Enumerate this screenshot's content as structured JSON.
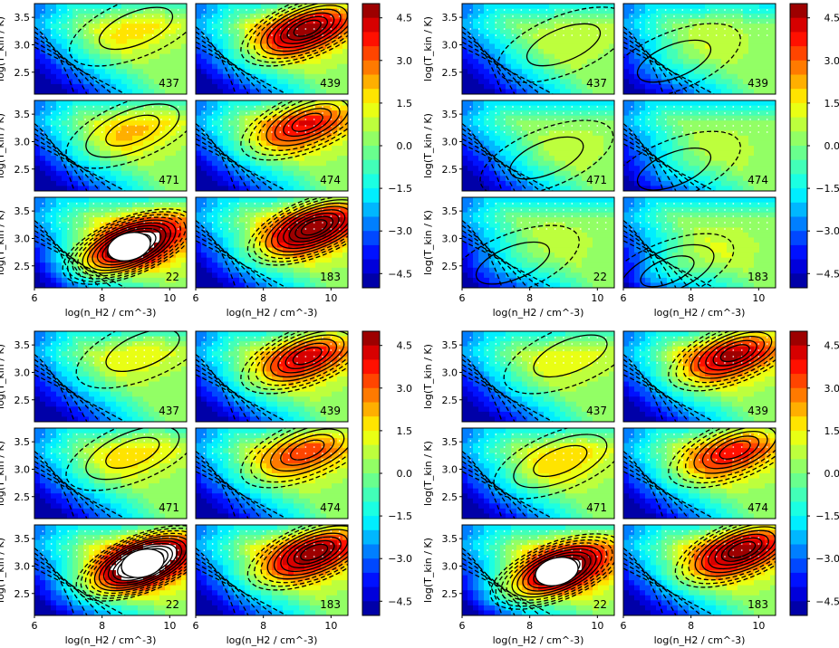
{
  "chart_data": [
    {
      "type": "heatmap",
      "block": "top-left",
      "xlabel": "log(n_H2 / cm^-3)",
      "ylabel": "log(T_kin / K)",
      "x_ticks": [
        "6",
        "8",
        "10"
      ],
      "y_ticks": [
        "2.5",
        "3.0",
        "3.5"
      ],
      "xlim": [
        6,
        10.5
      ],
      "ylim": [
        2.1,
        3.75
      ],
      "colorbar_ticks": [
        "4.5",
        "3.0",
        "1.5",
        "0.0",
        "−1.5",
        "−3.0",
        "−4.5"
      ],
      "colorbar_range": [
        -5,
        5
      ],
      "panels": [
        {
          "label": "437",
          "peak": {
            "x": 9.0,
            "y": 3.3,
            "value": 1.2
          },
          "has_hole": false
        },
        {
          "label": "439",
          "peak": {
            "x": 9.3,
            "y": 3.3,
            "value": 4.6
          },
          "has_hole": false
        },
        {
          "label": "471",
          "peak": {
            "x": 8.9,
            "y": 3.2,
            "value": 1.6
          },
          "has_hole": false
        },
        {
          "label": "474",
          "peak": {
            "x": 9.3,
            "y": 3.35,
            "value": 3.6
          },
          "has_hole": false
        },
        {
          "label": "22",
          "peak": {
            "x": 8.8,
            "y": 2.85,
            "value": 6.0
          },
          "has_hole": true
        },
        {
          "label": "183",
          "peak": {
            "x": 9.5,
            "y": 3.2,
            "value": 4.9
          },
          "has_hole": false
        }
      ]
    },
    {
      "type": "heatmap",
      "block": "top-right",
      "xlabel": "log(n_H2 / cm^-3)",
      "ylabel": "log(T_kin / K)",
      "x_ticks": [
        "6",
        "8",
        "10"
      ],
      "y_ticks": [
        "2.5",
        "3.0",
        "3.5"
      ],
      "xlim": [
        6,
        10.5
      ],
      "ylim": [
        2.1,
        3.75
      ],
      "colorbar_ticks": [
        "4.5",
        "3.0",
        "1.5",
        "0.0",
        "−1.5",
        "−3.0",
        "−4.5"
      ],
      "colorbar_range": [
        -5,
        5
      ],
      "panels": [
        {
          "label": "437",
          "peak": {
            "x": 9.0,
            "y": 3.0,
            "value": 0.3
          },
          "has_hole": false
        },
        {
          "label": "439",
          "peak": {
            "x": 7.5,
            "y": 2.7,
            "value": 0.8
          },
          "has_hole": false
        },
        {
          "label": "471",
          "peak": {
            "x": 8.5,
            "y": 2.7,
            "value": 0.3
          },
          "has_hole": false
        },
        {
          "label": "474",
          "peak": {
            "x": 7.5,
            "y": 2.5,
            "value": 0.9
          },
          "has_hole": false
        },
        {
          "label": "22",
          "peak": {
            "x": 7.5,
            "y": 2.55,
            "value": 0.9
          },
          "has_hole": false
        },
        {
          "label": "183",
          "peak": {
            "x": 7.3,
            "y": 2.4,
            "value": 1.7
          },
          "has_hole": false
        }
      ]
    },
    {
      "type": "heatmap",
      "block": "bottom-left",
      "xlabel": "log(n_H2 / cm^-3)",
      "ylabel": "log(T_kin / K)",
      "x_ticks": [
        "6",
        "8",
        "10"
      ],
      "y_ticks": [
        "2.5",
        "3.0",
        "3.5"
      ],
      "xlim": [
        6,
        10.5
      ],
      "ylim": [
        2.1,
        3.75
      ],
      "colorbar_ticks": [
        "4.5",
        "3.0",
        "1.5",
        "0.0",
        "−1.5",
        "−3.0",
        "−4.5"
      ],
      "colorbar_range": [
        -5,
        5
      ],
      "panels": [
        {
          "label": "437",
          "peak": {
            "x": 9.2,
            "y": 3.4,
            "value": 1.0
          },
          "has_hole": false
        },
        {
          "label": "439",
          "peak": {
            "x": 9.3,
            "y": 3.3,
            "value": 3.8
          },
          "has_hole": false
        },
        {
          "label": "471",
          "peak": {
            "x": 8.9,
            "y": 3.3,
            "value": 1.4
          },
          "has_hole": false
        },
        {
          "label": "474",
          "peak": {
            "x": 9.3,
            "y": 3.35,
            "value": 3.0
          },
          "has_hole": false
        },
        {
          "label": "22",
          "peak": {
            "x": 9.2,
            "y": 3.05,
            "value": 6.5
          },
          "has_hole": true
        },
        {
          "label": "183",
          "peak": {
            "x": 9.5,
            "y": 3.25,
            "value": 4.5
          },
          "has_hole": false
        }
      ]
    },
    {
      "type": "heatmap",
      "block": "bottom-right",
      "xlabel": "log(n_H2 / cm^-3)",
      "ylabel": "log(T_kin / K)",
      "x_ticks": [
        "6",
        "8",
        "10"
      ],
      "y_ticks": [
        "2.5",
        "3.0",
        "3.5"
      ],
      "xlim": [
        6,
        10.5
      ],
      "ylim": [
        2.1,
        3.75
      ],
      "colorbar_ticks": [
        "4.5",
        "3.0",
        "1.5",
        "0.0",
        "−1.5",
        "−3.0",
        "−4.5"
      ],
      "colorbar_range": [
        -5,
        5
      ],
      "panels": [
        {
          "label": "437",
          "peak": {
            "x": 9.2,
            "y": 3.3,
            "value": 0.9
          },
          "has_hole": false
        },
        {
          "label": "439",
          "peak": {
            "x": 9.3,
            "y": 3.35,
            "value": 4.2
          },
          "has_hole": false
        },
        {
          "label": "471",
          "peak": {
            "x": 8.9,
            "y": 3.15,
            "value": 1.4
          },
          "has_hole": false
        },
        {
          "label": "474",
          "peak": {
            "x": 9.3,
            "y": 3.35,
            "value": 3.5
          },
          "has_hole": false
        },
        {
          "label": "22",
          "peak": {
            "x": 8.8,
            "y": 2.9,
            "value": 5.6
          },
          "has_hole": true
        },
        {
          "label": "183",
          "peak": {
            "x": 9.5,
            "y": 3.3,
            "value": 4.6
          },
          "has_hole": false
        }
      ]
    }
  ]
}
